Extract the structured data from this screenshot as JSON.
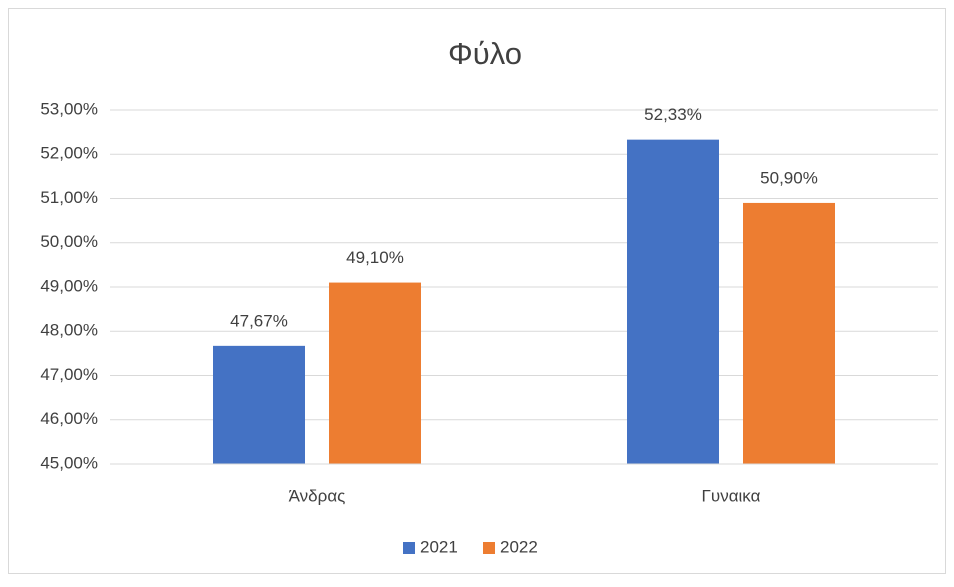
{
  "chart_data": {
    "type": "bar",
    "title": "Φύλο",
    "categories": [
      "Άνδρας",
      "Γυναικα"
    ],
    "series": [
      {
        "name": "2021",
        "color": "#4472c4",
        "values": [
          47.67,
          52.33
        ],
        "value_labels": [
          "47,67%",
          "52,33%"
        ]
      },
      {
        "name": "2022",
        "color": "#ed7d31",
        "values": [
          49.1,
          50.9
        ],
        "value_labels": [
          "49,10%",
          "50,90%"
        ]
      }
    ],
    "ylim": [
      45,
      53
    ],
    "yticks": [
      {
        "value": 45,
        "label": "45,00%"
      },
      {
        "value": 46,
        "label": "46,00%"
      },
      {
        "value": 47,
        "label": "47,00%"
      },
      {
        "value": 48,
        "label": "48,00%"
      },
      {
        "value": 49,
        "label": "49,00%"
      },
      {
        "value": 50,
        "label": "50,00%"
      },
      {
        "value": 51,
        "label": "51,00%"
      },
      {
        "value": 52,
        "label": "52,00%"
      },
      {
        "value": 53,
        "label": "53,00%"
      }
    ],
    "grid": true,
    "legend": "bottom"
  }
}
